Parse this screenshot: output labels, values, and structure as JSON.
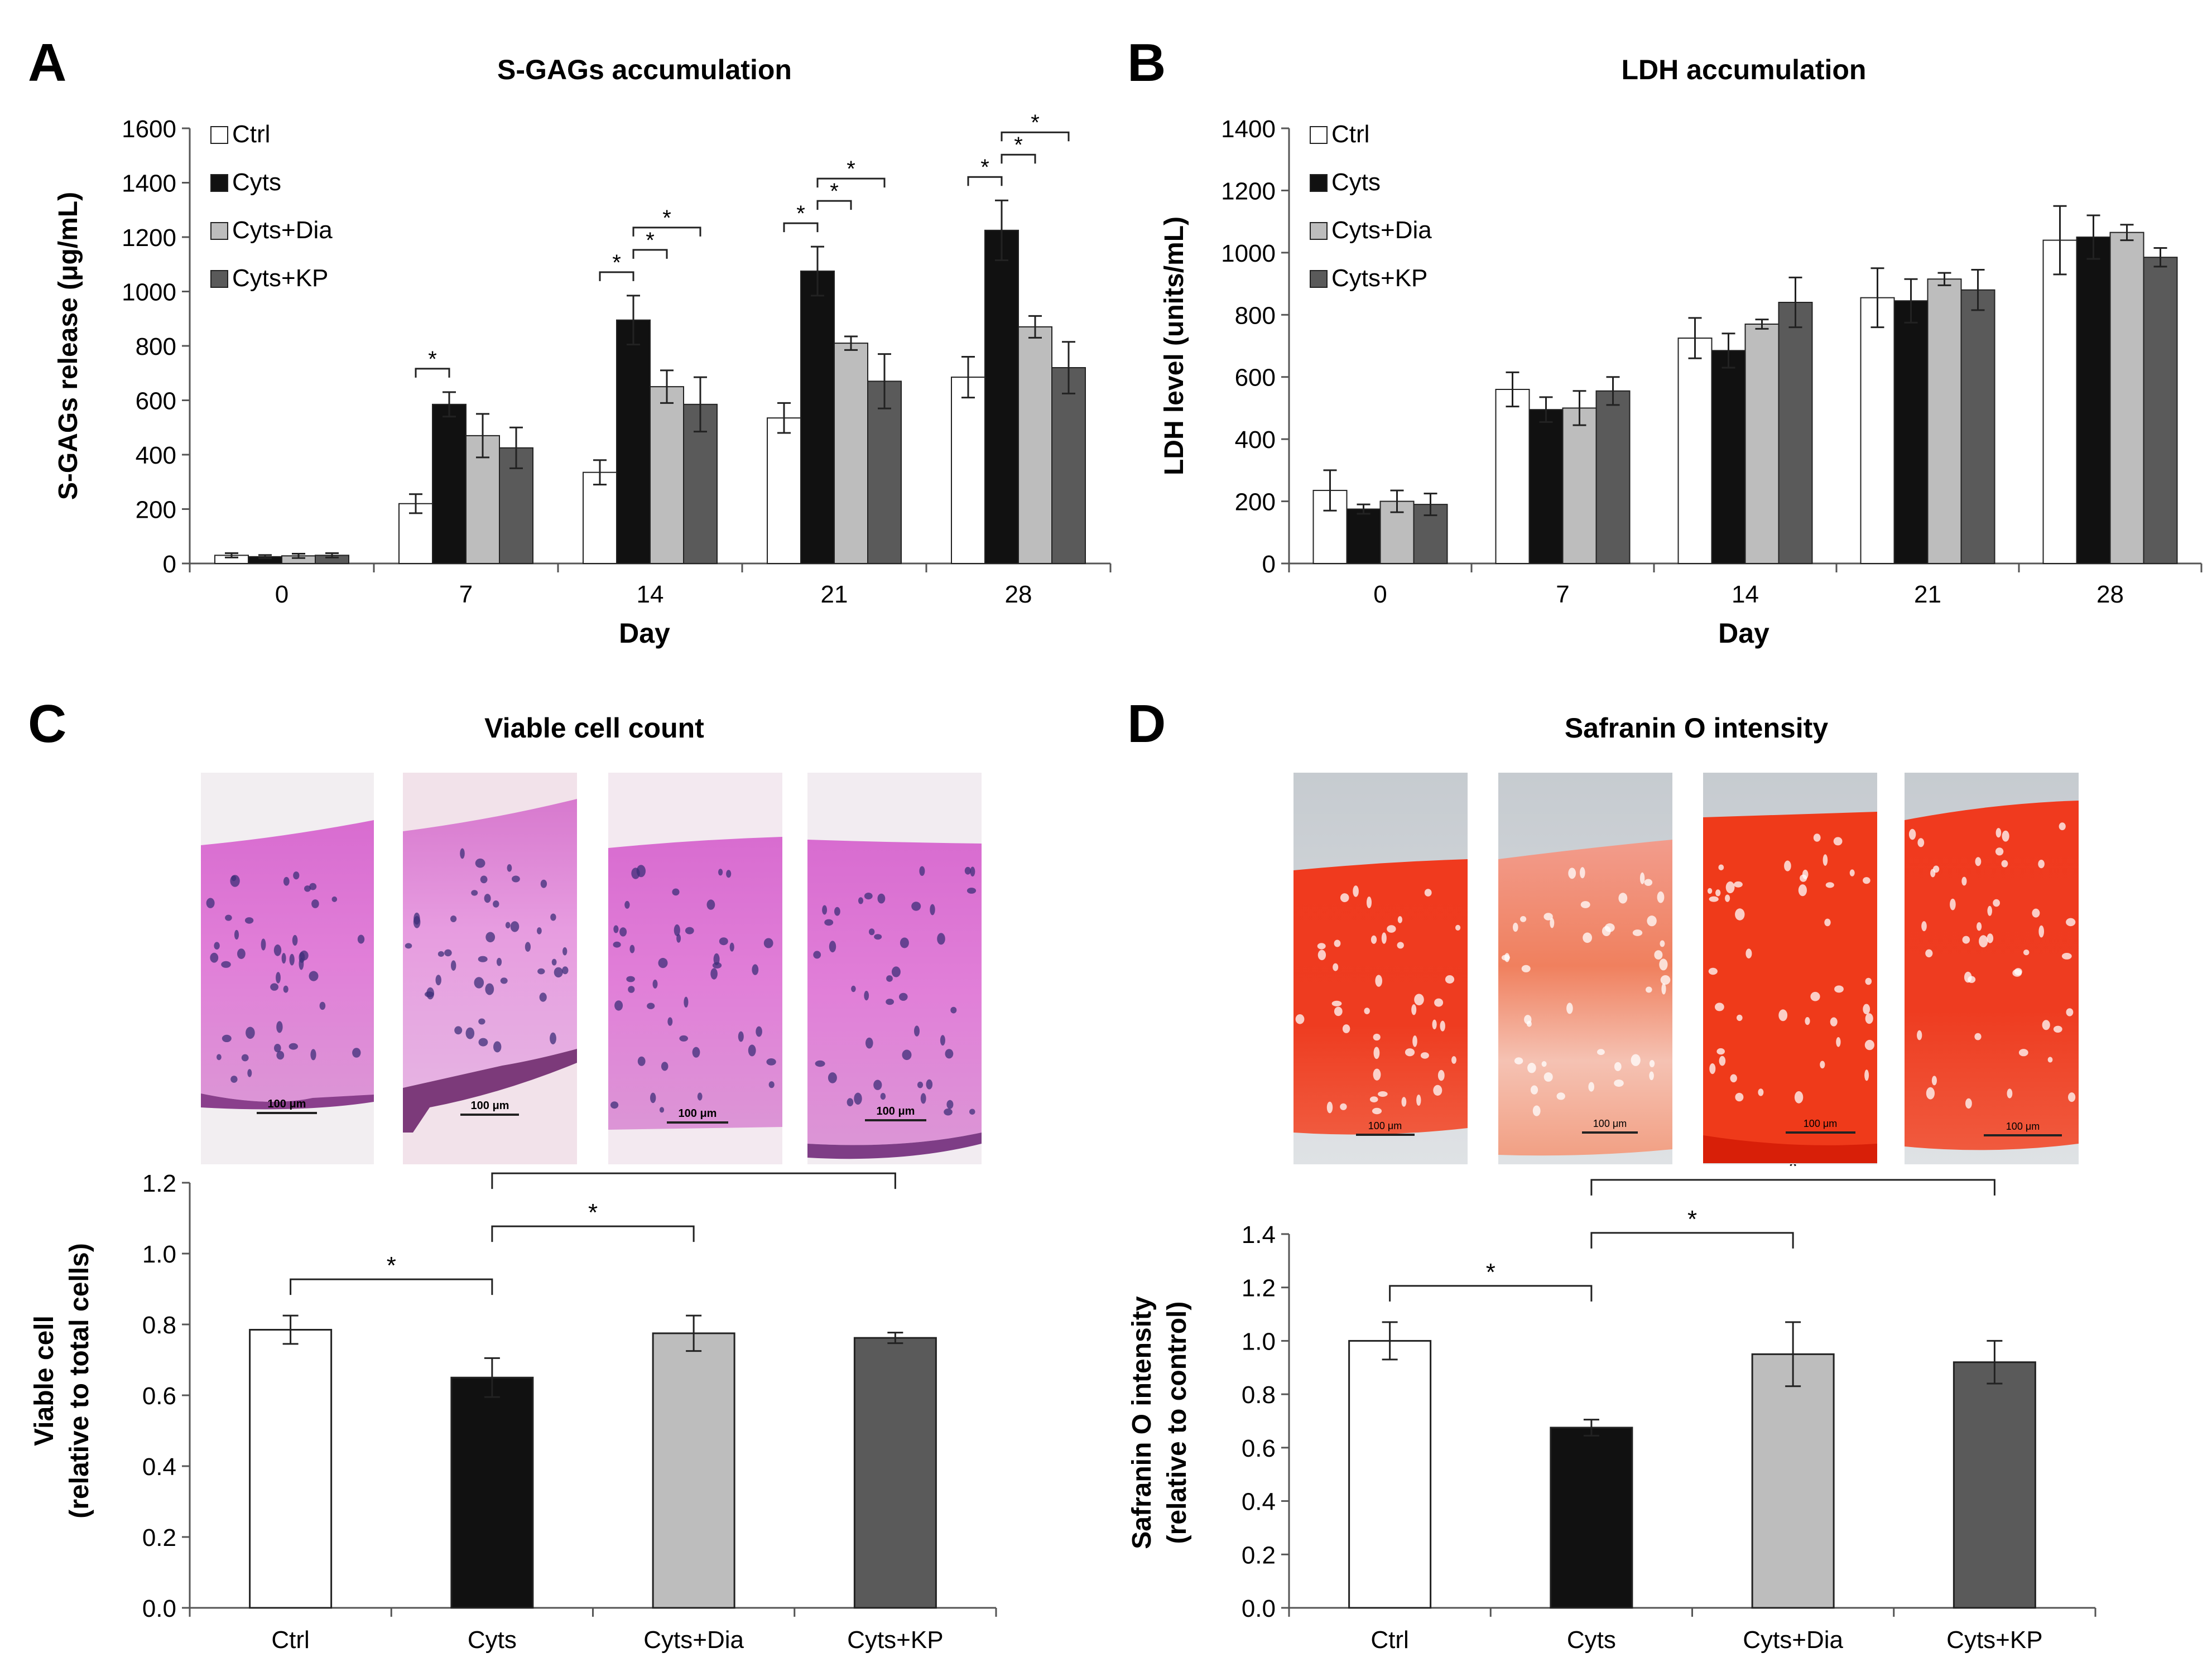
{
  "colors": {
    "Ctrl": "#ffffff",
    "Cyts": "#111111",
    "Cyts+Dia": "#bdbdbd",
    "Cyts+KP": "#5a5a5a",
    "axis": "#555555",
    "bar_outline": "#222222",
    "he_stain": "#d977d0",
    "safranin_stain": "#e8321c"
  },
  "chart_data": [
    {
      "panel_letter": "A",
      "type": "bar",
      "title": "S-GAGs accumulation",
      "xlabel": "Day",
      "ylabel": "S-GAGs release (μg/mL)",
      "categories": [
        "0",
        "7",
        "14",
        "21",
        "28"
      ],
      "ylim": [
        0,
        1600
      ],
      "yticks": [
        "0",
        "200",
        "400",
        "600",
        "800",
        "1000",
        "1200",
        "1400",
        "1600"
      ],
      "legend_position": "top-left",
      "series": [
        {
          "name": "Ctrl",
          "values": [
            30,
            220,
            335,
            535,
            685
          ],
          "errors": [
            8,
            35,
            45,
            55,
            75
          ]
        },
        {
          "name": "Cyts",
          "values": [
            25,
            585,
            895,
            1075,
            1225
          ],
          "errors": [
            6,
            45,
            90,
            90,
            110
          ]
        },
        {
          "name": "Cyts+Dia",
          "values": [
            28,
            470,
            650,
            810,
            870
          ],
          "errors": [
            8,
            80,
            60,
            25,
            40
          ]
        },
        {
          "name": "Cyts+KP",
          "values": [
            30,
            425,
            585,
            670,
            720
          ],
          "errors": [
            8,
            75,
            100,
            100,
            95
          ]
        }
      ],
      "significance": [
        {
          "category": "7",
          "from": "Ctrl",
          "to": "Cyts",
          "label": "*"
        },
        {
          "category": "14",
          "from": "Ctrl",
          "to": "Cyts",
          "label": "*"
        },
        {
          "category": "14",
          "from": "Cyts",
          "to": "Cyts+Dia",
          "label": "*"
        },
        {
          "category": "14",
          "from": "Cyts",
          "to": "Cyts+KP",
          "label": "*"
        },
        {
          "category": "21",
          "from": "Ctrl",
          "to": "Cyts",
          "label": "*"
        },
        {
          "category": "21",
          "from": "Cyts",
          "to": "Cyts+Dia",
          "label": "*"
        },
        {
          "category": "21",
          "from": "Cyts",
          "to": "Cyts+KP",
          "label": "*"
        },
        {
          "category": "28",
          "from": "Ctrl",
          "to": "Cyts",
          "label": "*"
        },
        {
          "category": "28",
          "from": "Cyts",
          "to": "Cyts+Dia",
          "label": "*"
        },
        {
          "category": "28",
          "from": "Cyts",
          "to": "Cyts+KP",
          "label": "*"
        }
      ]
    },
    {
      "panel_letter": "B",
      "type": "bar",
      "title": "LDH accumulation",
      "xlabel": "Day",
      "ylabel": "LDH level (units/mL)",
      "categories": [
        "0",
        "7",
        "14",
        "21",
        "28"
      ],
      "ylim": [
        0,
        1400
      ],
      "yticks": [
        "0",
        "200",
        "400",
        "600",
        "800",
        "1000",
        "1200",
        "1400"
      ],
      "legend_position": "top-left",
      "series": [
        {
          "name": "Ctrl",
          "values": [
            235,
            560,
            725,
            855,
            1040
          ],
          "errors": [
            65,
            55,
            65,
            95,
            110
          ]
        },
        {
          "name": "Cyts",
          "values": [
            175,
            495,
            685,
            845,
            1050
          ],
          "errors": [
            15,
            40,
            55,
            70,
            70
          ]
        },
        {
          "name": "Cyts+Dia",
          "values": [
            200,
            500,
            770,
            915,
            1065
          ],
          "errors": [
            35,
            55,
            15,
            20,
            25
          ]
        },
        {
          "name": "Cyts+KP",
          "values": [
            190,
            555,
            840,
            880,
            985
          ],
          "errors": [
            35,
            45,
            80,
            65,
            30
          ]
        }
      ],
      "significance": []
    },
    {
      "panel_letter": "C",
      "type": "bar",
      "title": "Viable cell count",
      "xlabel": "",
      "ylabel": "Viable cell",
      "ylabel2": "(relative to total cells)",
      "categories": [
        "Ctrl",
        "Cyts",
        "Cyts+Dia",
        "Cyts+KP"
      ],
      "ylim": [
        0,
        1.2
      ],
      "yticks": [
        "0.0",
        "0.2",
        "0.4",
        "0.6",
        "0.8",
        "1.0",
        "1.2"
      ],
      "values": [
        0.785,
        0.65,
        0.775,
        0.762
      ],
      "errors": [
        0.04,
        0.055,
        0.05,
        0.015
      ],
      "images": {
        "scale_bar_label": "100 μm"
      },
      "significance": [
        {
          "from": "Ctrl",
          "to": "Cyts",
          "label": "*"
        },
        {
          "from": "Cyts",
          "to": "Cyts+Dia",
          "label": "*"
        },
        {
          "from": "Cyts",
          "to": "Cyts+KP",
          "label": "*"
        }
      ]
    },
    {
      "panel_letter": "D",
      "type": "bar",
      "title": "Safranin O intensity",
      "xlabel": "",
      "ylabel": "Safranin O intensity",
      "ylabel2": "(relative to control)",
      "categories": [
        "Ctrl",
        "Cyts",
        "Cyts+Dia",
        "Cyts+KP"
      ],
      "ylim": [
        0,
        1.4
      ],
      "yticks": [
        "0.0",
        "0.2",
        "0.4",
        "0.6",
        "0.8",
        "1.0",
        "1.2",
        "1.4"
      ],
      "values": [
        1.0,
        0.675,
        0.95,
        0.92
      ],
      "errors": [
        0.07,
        0.03,
        0.12,
        0.08
      ],
      "images": {
        "scale_bar_label": "100 μm"
      },
      "significance": [
        {
          "from": "Ctrl",
          "to": "Cyts",
          "label": "*"
        },
        {
          "from": "Cyts",
          "to": "Cyts+Dia",
          "label": "*"
        },
        {
          "from": "Cyts",
          "to": "Cyts+KP",
          "label": "*"
        }
      ]
    }
  ]
}
